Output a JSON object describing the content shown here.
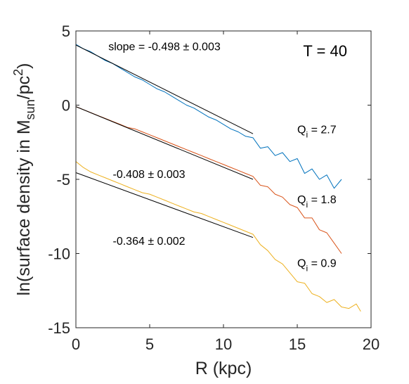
{
  "chart_data": {
    "type": "line",
    "title": "",
    "xlabel": "R (kpc)",
    "ylabel": "ln(surface density in M",
    "ylabel_sub": "sun",
    "ylabel_tail": "/pc",
    "ylabel_sup": "2",
    "ylabel_close": ")",
    "xlim": [
      0,
      20
    ],
    "ylim": [
      -15,
      5
    ],
    "xticks": [
      0,
      5,
      10,
      15,
      20
    ],
    "yticks": [
      5,
      0,
      -5,
      -10,
      -15
    ],
    "xtick_labels": [
      "0",
      "5",
      "10",
      "15",
      "20"
    ],
    "ytick_labels": [
      "5",
      "0",
      "-5",
      "-10",
      "-15"
    ],
    "grid": false,
    "series": [
      {
        "color": "#0072BD",
        "x": [
          0,
          0.5,
          1,
          1.5,
          2,
          2.5,
          3,
          3.5,
          4,
          4.5,
          5,
          5.5,
          6,
          6.5,
          7,
          7.5,
          8,
          8.5,
          9,
          9.5,
          10,
          10.5,
          11,
          11.5,
          12,
          12.5,
          13,
          13.5,
          14,
          14.5,
          15,
          15.5,
          16,
          16.5,
          17,
          17.5,
          18
        ],
        "y": [
          4.1,
          3.8,
          3.6,
          3.3,
          3.0,
          2.8,
          2.5,
          2.2,
          1.9,
          1.7,
          1.4,
          1.1,
          0.9,
          0.6,
          0.3,
          0.0,
          -0.2,
          -0.5,
          -0.8,
          -1.0,
          -1.3,
          -1.6,
          -1.8,
          -2.1,
          -2.2,
          -2.9,
          -2.8,
          -3.4,
          -3.2,
          -3.8,
          -3.6,
          -4.6,
          -4.3,
          -5.0,
          -4.7,
          -5.6,
          -5.0
        ]
      },
      {
        "color": "#D95319",
        "x": [
          0,
          0.5,
          1,
          1.5,
          2,
          2.5,
          3,
          3.5,
          4,
          4.5,
          5,
          5.5,
          6,
          6.5,
          7,
          7.5,
          8,
          8.5,
          9,
          9.5,
          10,
          10.5,
          11,
          11.5,
          12,
          12.5,
          13,
          13.5,
          14,
          14.5,
          15,
          15.5,
          16,
          16.5,
          17,
          17.5,
          18
        ],
        "y": [
          -0.1,
          -0.3,
          -0.5,
          -0.7,
          -0.9,
          -1.1,
          -1.3,
          -1.5,
          -1.6,
          -1.8,
          -2.0,
          -2.2,
          -2.4,
          -2.6,
          -2.8,
          -3.0,
          -3.2,
          -3.4,
          -3.6,
          -3.8,
          -4.0,
          -4.2,
          -4.4,
          -4.6,
          -4.8,
          -5.4,
          -5.5,
          -6.0,
          -6.2,
          -6.7,
          -6.9,
          -7.6,
          -7.6,
          -8.4,
          -8.6,
          -9.3,
          -10.0
        ]
      },
      {
        "color": "#EDB120",
        "x": [
          0,
          0.5,
          1,
          1.5,
          2,
          2.5,
          3,
          3.5,
          4,
          4.5,
          5,
          5.5,
          6,
          6.5,
          7,
          7.5,
          8,
          8.5,
          9,
          9.5,
          10,
          10.5,
          11,
          11.5,
          12,
          12.5,
          13,
          13.5,
          14,
          14.5,
          15,
          15.5,
          16,
          16.5,
          17,
          17.5,
          18,
          18.5,
          19,
          19.3
        ],
        "y": [
          -3.8,
          -4.2,
          -4.5,
          -4.7,
          -4.9,
          -5.1,
          -5.3,
          -5.5,
          -5.7,
          -5.9,
          -6.0,
          -6.2,
          -6.4,
          -6.6,
          -6.8,
          -7.0,
          -7.2,
          -7.3,
          -7.5,
          -7.7,
          -7.9,
          -8.1,
          -8.3,
          -8.5,
          -8.7,
          -9.4,
          -9.8,
          -10.4,
          -10.7,
          -11.3,
          -11.9,
          -12.0,
          -12.7,
          -12.9,
          -13.3,
          -13.1,
          -13.6,
          -13.7,
          -13.4,
          -13.9
        ]
      }
    ],
    "fits": [
      {
        "color": "#000000",
        "x": [
          0,
          12
        ],
        "y": [
          4.05,
          -1.93
        ]
      },
      {
        "color": "#000000",
        "x": [
          0,
          12
        ],
        "y": [
          -0.1,
          -5.0
        ]
      },
      {
        "color": "#000000",
        "x": [
          0,
          12
        ],
        "y": [
          -4.55,
          -8.92
        ]
      }
    ],
    "annotations": [
      {
        "text": "slope = -0.498 ± 0.003",
        "x": 2.2,
        "y": 3.7,
        "style": "normal"
      },
      {
        "text": "-0.408 ± 0.003",
        "x": 2.5,
        "y": -4.9,
        "style": "normal"
      },
      {
        "text": "-0.364 ± 0.002",
        "x": 2.5,
        "y": -9.4,
        "style": "normal"
      },
      {
        "text": "T = 40",
        "x": 15.4,
        "y": 3.3,
        "style": "big"
      }
    ],
    "q_labels": [
      {
        "q": "Q",
        "sub": "i",
        "val": " = 2.7",
        "x": 15.0,
        "y": -1.9
      },
      {
        "q": "Q",
        "sub": "i",
        "val": " = 1.8",
        "x": 15.0,
        "y": -6.6
      },
      {
        "q": "Q",
        "sub": "i",
        "val": " = 0.9",
        "x": 15.0,
        "y": -10.9
      }
    ]
  }
}
